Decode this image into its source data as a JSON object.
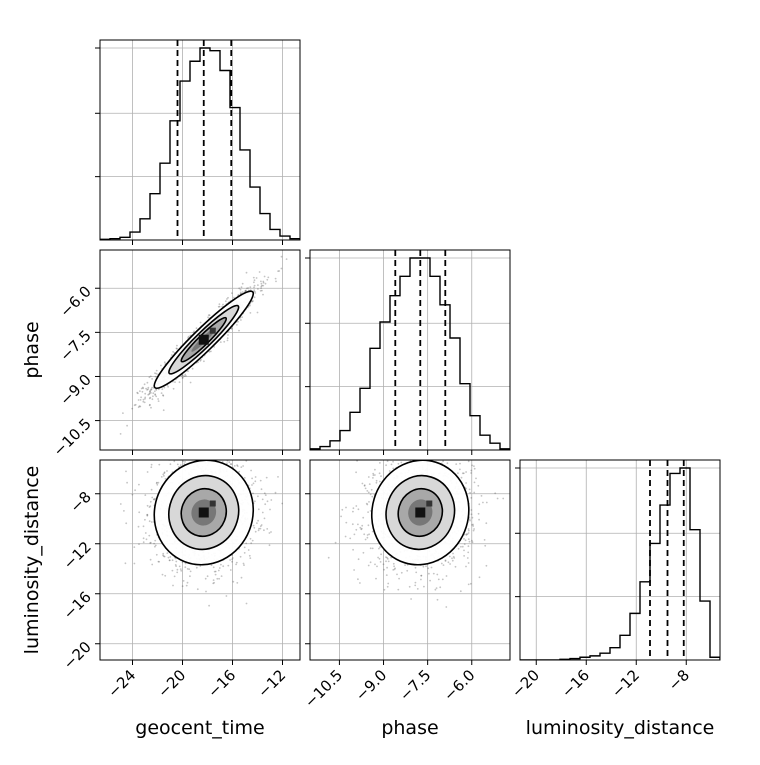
{
  "chart_data": {
    "type": "corner",
    "parameters": [
      "geocent_time",
      "phase",
      "luminosity_distance"
    ],
    "axes": {
      "geocent_time": {
        "range": [
          -26.6,
          -10.6
        ],
        "ticks": [
          -24,
          -20,
          -16,
          -12
        ],
        "tick_labels": [
          "−24",
          "−20",
          "−16",
          "−12"
        ]
      },
      "phase": {
        "range": [
          -11.5,
          -4.7
        ],
        "ticks": [
          -10.5,
          -9.0,
          -7.5,
          -6.0
        ],
        "tick_labels": [
          "−10.5",
          "−9.0",
          "−7.5",
          "−6.0"
        ]
      },
      "luminosity_distance": {
        "range": [
          -21.3,
          -5.3
        ],
        "ticks": [
          -20,
          -16,
          -12,
          -8
        ],
        "tick_labels": [
          "−20",
          "−16",
          "−12",
          "−8"
        ]
      }
    },
    "quantiles": {
      "geocent_time": [
        -20.4,
        -18.3,
        -16.1
      ],
      "phase": [
        -8.6,
        -7.75,
        -6.9
      ],
      "luminosity_distance": [
        -10.9,
        -9.5,
        -8.2
      ]
    },
    "histograms": {
      "geocent_time": {
        "bin_edges": [
          -26.6,
          -25.8,
          -25.0,
          -24.2,
          -23.4,
          -22.6,
          -21.8,
          -21.0,
          -20.2,
          -19.4,
          -18.6,
          -17.8,
          -17.0,
          -16.2,
          -15.4,
          -14.6,
          -13.8,
          -13.0,
          -12.2,
          -11.4,
          -10.6
        ],
        "counts": [
          0.5,
          1,
          2,
          6,
          16,
          35,
          58,
          90,
          120,
          135,
          145,
          143,
          128,
          100,
          68,
          40,
          20,
          8,
          3,
          1
        ]
      },
      "phase": {
        "bin_edges": [
          -11.5,
          -11.16,
          -10.82,
          -10.48,
          -10.14,
          -9.8,
          -9.46,
          -9.12,
          -8.78,
          -8.44,
          -8.1,
          -7.76,
          -7.42,
          -7.08,
          -6.74,
          -6.4,
          -6.06,
          -5.72,
          -5.38,
          -5.04,
          -4.7
        ],
        "counts": [
          1,
          3,
          8,
          17,
          33,
          54,
          89,
          112,
          135,
          152,
          168,
          168,
          152,
          127,
          98,
          58,
          30,
          13,
          6,
          1
        ]
      },
      "luminosity_distance": {
        "bin_edges": [
          -21.3,
          -20.5,
          -19.7,
          -18.9,
          -18.1,
          -17.3,
          -16.5,
          -15.7,
          -14.9,
          -14.1,
          -13.3,
          -12.5,
          -11.7,
          -10.9,
          -10.1,
          -9.3,
          -8.5,
          -7.7,
          -6.9,
          -6.1,
          -5.3
        ],
        "counts": [
          0,
          0,
          0,
          0,
          0.5,
          1,
          2,
          3,
          5,
          9,
          18,
          34,
          57,
          85,
          113,
          136,
          140,
          95,
          43,
          2
        ]
      }
    },
    "pair_plots": [
      {
        "x": "geocent_time",
        "y": "phase",
        "style": "2d histogram + contours",
        "center": [
          -18.3,
          -7.75
        ],
        "sd": [
          1.8,
          0.75
        ],
        "correlation": 0.95
      },
      {
        "x": "geocent_time",
        "y": "luminosity_distance",
        "style": "2d histogram + contours",
        "center": [
          -18.3,
          -9.5
        ],
        "sd": [
          1.8,
          1.9
        ],
        "correlation": 0.05
      },
      {
        "x": "phase",
        "y": "luminosity_distance",
        "style": "2d histogram + contours",
        "center": [
          -7.75,
          -9.5
        ],
        "sd": [
          0.75,
          1.9
        ],
        "correlation": 0.05
      }
    ],
    "grid": true
  }
}
